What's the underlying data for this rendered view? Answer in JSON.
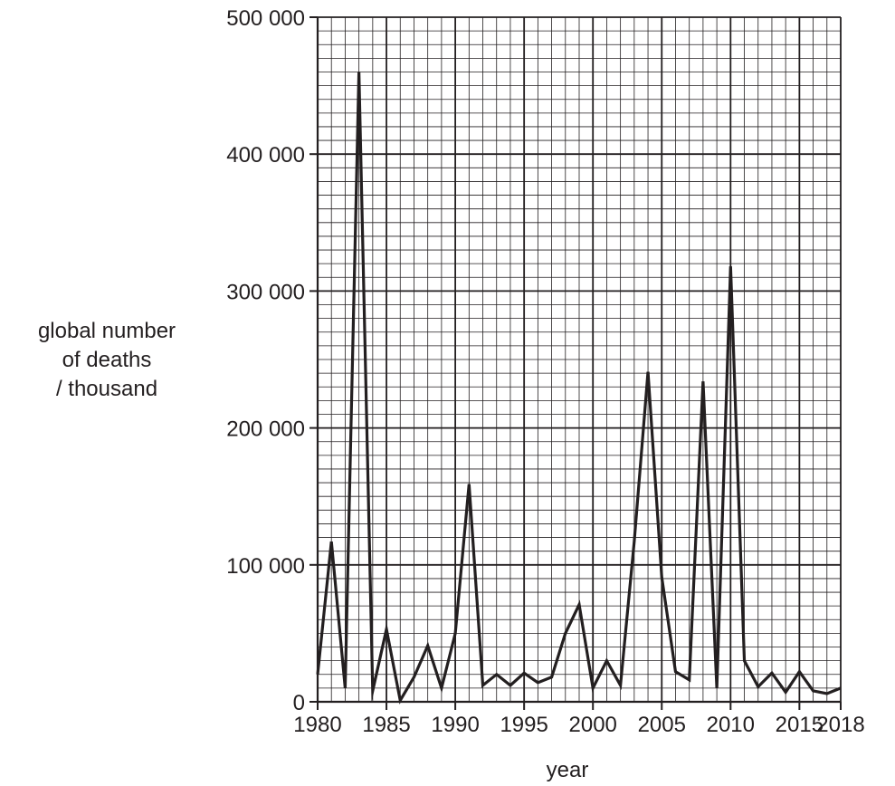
{
  "chart_data": {
    "type": "line",
    "xlabel": "year",
    "ylabel": [
      "global number",
      "of deaths",
      "/ thousand"
    ],
    "xlim": [
      1980,
      2018
    ],
    "ylim": [
      0,
      500000
    ],
    "x_ticks": [
      1980,
      1985,
      1990,
      1995,
      2000,
      2005,
      2010,
      2015,
      2018
    ],
    "x_tick_labels": [
      "1980",
      "1985",
      "1990",
      "1995",
      "2000",
      "2005",
      "2010",
      "2015",
      "2018"
    ],
    "y_ticks": [
      0,
      100000,
      200000,
      300000,
      400000,
      500000
    ],
    "y_tick_labels": [
      "0",
      "100 000",
      "200 000",
      "300 000",
      "400 000",
      "500 000"
    ],
    "grid": true,
    "grid_minor_x": 1,
    "grid_minor_y": 10000,
    "line_color": "#231f20",
    "grid_color": "#231f20",
    "series": [
      {
        "x": [
          1980,
          1981,
          1982,
          1983,
          1984,
          1985,
          1986,
          1987,
          1988,
          1989,
          1990,
          1991,
          1992,
          1993,
          1994,
          1995,
          1996,
          1997,
          1998,
          1999,
          2000,
          2001,
          2002,
          2003,
          2004,
          2005,
          2006,
          2007,
          2008,
          2009,
          2010,
          2011,
          2012,
          2013,
          2014,
          2015,
          2016,
          2017,
          2018
        ],
        "values": [
          20000,
          117000,
          10000,
          460000,
          8000,
          53000,
          1000,
          18000,
          41000,
          10000,
          50000,
          159000,
          12000,
          20000,
          12000,
          21000,
          14000,
          18000,
          50000,
          71000,
          10000,
          30000,
          12000,
          117000,
          241000,
          91000,
          22000,
          16000,
          234000,
          10000,
          318000,
          30000,
          11000,
          21000,
          7000,
          22000,
          8000,
          6000,
          10000
        ]
      }
    ]
  }
}
